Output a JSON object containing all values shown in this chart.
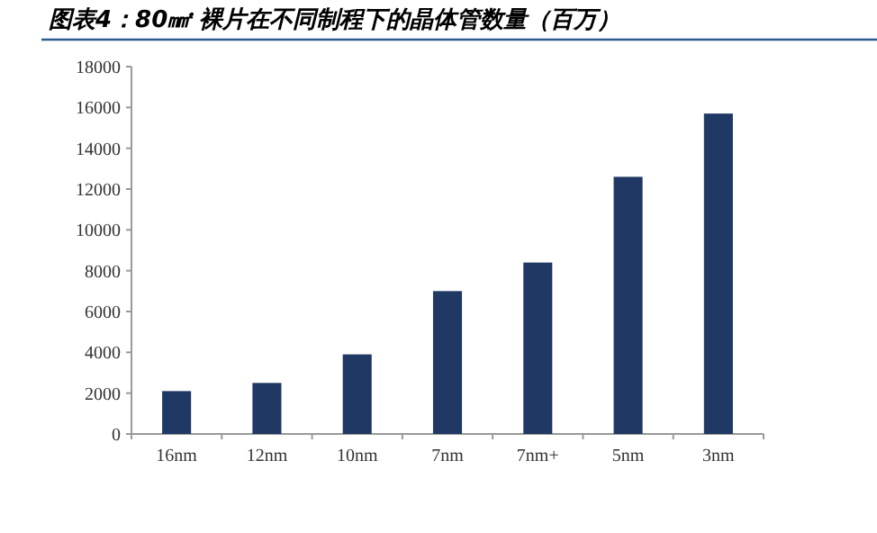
{
  "chart_data": {
    "type": "bar",
    "title": "图表4：80㎟ 裸片在不同制程下的晶体管数量（百万）",
    "categories": [
      "16nm",
      "12nm",
      "10nm",
      "7nm",
      "7nm+",
      "5nm",
      "3nm"
    ],
    "values": [
      2100,
      2500,
      3900,
      7000,
      8400,
      12600,
      15700
    ],
    "color": "#1f3864",
    "ylim": [
      0,
      18000
    ],
    "yticks": [
      0,
      2000,
      4000,
      6000,
      8000,
      10000,
      12000,
      14000,
      16000,
      18000
    ]
  }
}
